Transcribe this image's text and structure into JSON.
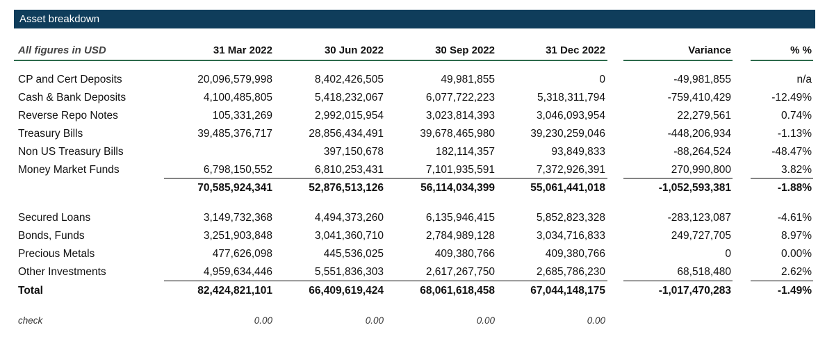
{
  "title": "Asset breakdown",
  "header": {
    "label": "All figures in USD",
    "columns": [
      "31 Mar 2022",
      "30 Jun 2022",
      "30 Sep 2022",
      "31 Dec 2022",
      "Variance",
      "% %"
    ]
  },
  "group1": [
    {
      "label": "CP and Cert Deposits",
      "values": [
        "20,096,579,998",
        "8,402,426,505",
        "49,981,855",
        "0",
        "-49,981,855",
        "n/a"
      ]
    },
    {
      "label": "Cash & Bank Deposits",
      "values": [
        "4,100,485,805",
        "5,418,232,067",
        "6,077,722,223",
        "5,318,311,794",
        "-759,410,429",
        "-12.49%"
      ]
    },
    {
      "label": "Reverse Repo Notes",
      "values": [
        "105,331,269",
        "2,992,015,954",
        "3,023,814,393",
        "3,046,093,954",
        "22,279,561",
        "0.74%"
      ]
    },
    {
      "label": "Treasury Bills",
      "values": [
        "39,485,376,717",
        "28,856,434,491",
        "39,678,465,980",
        "39,230,259,046",
        "-448,206,934",
        "-1.13%"
      ]
    },
    {
      "label": "Non US Treasury Bills",
      "values": [
        "",
        "397,150,678",
        "182,114,357",
        "93,849,833",
        "-88,264,524",
        "-48.47%"
      ]
    },
    {
      "label": "Money Market Funds",
      "values": [
        "6,798,150,552",
        "6,810,253,431",
        "7,101,935,591",
        "7,372,926,391",
        "270,990,800",
        "3.82%"
      ]
    }
  ],
  "subtotal": [
    "70,585,924,341",
    "52,876,513,126",
    "56,114,034,399",
    "55,061,441,018",
    "-1,052,593,381",
    "-1.88%"
  ],
  "group2": [
    {
      "label": "Secured Loans",
      "values": [
        "3,149,732,368",
        "4,494,373,260",
        "6,135,946,415",
        "5,852,823,328",
        "-283,123,087",
        "-4.61%"
      ]
    },
    {
      "label": "Bonds, Funds",
      "values": [
        "3,251,903,848",
        "3,041,360,710",
        "2,784,989,128",
        "3,034,716,833",
        "249,727,705",
        "8.97%"
      ]
    },
    {
      "label": "Precious Metals",
      "values": [
        "477,626,098",
        "445,536,025",
        "409,380,766",
        "409,380,766",
        "0",
        "0.00%"
      ]
    },
    {
      "label": "Other Investments",
      "values": [
        "4,959,634,446",
        "5,551,836,303",
        "2,617,267,750",
        "2,685,786,230",
        "68,518,480",
        "2.62%"
      ]
    }
  ],
  "total": {
    "label": "Total",
    "values": [
      "82,424,821,101",
      "66,409,619,424",
      "68,061,618,458",
      "67,044,148,175",
      "-1,017,470,283",
      "-1.49%"
    ]
  },
  "check": {
    "label": "check",
    "values": [
      "0.00",
      "0.00",
      "0.00",
      "0.00"
    ]
  }
}
